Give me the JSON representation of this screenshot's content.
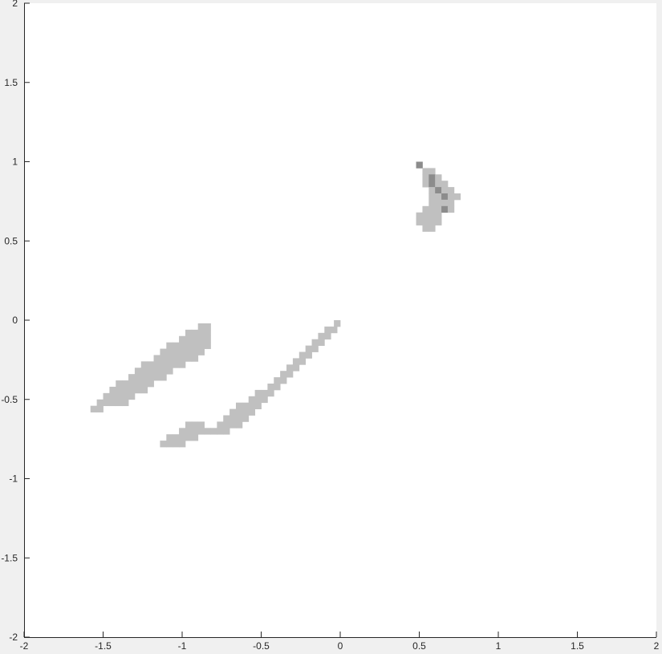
{
  "chart_data": {
    "type": "heatmap",
    "title": "",
    "xlabel": "",
    "ylabel": "",
    "xlim": [
      -2,
      2
    ],
    "ylim": [
      -2,
      2
    ],
    "grid": false,
    "legend": "none",
    "cell_size": 0.04,
    "xticks": [
      "-2",
      "-1.5",
      "-1",
      "-0.5",
      "0",
      "0.5",
      "1",
      "1.5",
      "2"
    ],
    "yticks": [
      "-2",
      "-1.5",
      "-1",
      "-0.5",
      "0",
      "0.5",
      "1",
      "1.5",
      "2"
    ],
    "colors": {
      "background": "#ffffff",
      "low": "#c0c0c0",
      "high": "#8c8c8c",
      "axis": "#262626"
    },
    "cells": [
      [
        -0.88,
        -0.04,
        1
      ],
      [
        -0.84,
        -0.04,
        1
      ],
      [
        -0.96,
        -0.08,
        1
      ],
      [
        -0.92,
        -0.08,
        1
      ],
      [
        -0.88,
        -0.08,
        1
      ],
      [
        -0.84,
        -0.08,
        1
      ],
      [
        -1.0,
        -0.12,
        1
      ],
      [
        -0.96,
        -0.12,
        1
      ],
      [
        -0.92,
        -0.12,
        1
      ],
      [
        -0.88,
        -0.12,
        1
      ],
      [
        -0.84,
        -0.12,
        1
      ],
      [
        -1.08,
        -0.16,
        1
      ],
      [
        -1.04,
        -0.16,
        1
      ],
      [
        -1.0,
        -0.16,
        1
      ],
      [
        -0.96,
        -0.16,
        1
      ],
      [
        -0.92,
        -0.16,
        1
      ],
      [
        -0.88,
        -0.16,
        1
      ],
      [
        -0.84,
        -0.16,
        1
      ],
      [
        -1.12,
        -0.2,
        1
      ],
      [
        -1.08,
        -0.2,
        1
      ],
      [
        -1.04,
        -0.2,
        1
      ],
      [
        -1.0,
        -0.2,
        1
      ],
      [
        -0.96,
        -0.2,
        1
      ],
      [
        -0.92,
        -0.2,
        1
      ],
      [
        -0.88,
        -0.2,
        1
      ],
      [
        -1.16,
        -0.24,
        1
      ],
      [
        -1.12,
        -0.24,
        1
      ],
      [
        -1.08,
        -0.24,
        1
      ],
      [
        -1.04,
        -0.24,
        1
      ],
      [
        -1.0,
        -0.24,
        1
      ],
      [
        -0.96,
        -0.24,
        1
      ],
      [
        -0.92,
        -0.24,
        1
      ],
      [
        -1.24,
        -0.28,
        1
      ],
      [
        -1.2,
        -0.28,
        1
      ],
      [
        -1.16,
        -0.28,
        1
      ],
      [
        -1.12,
        -0.28,
        1
      ],
      [
        -1.08,
        -0.28,
        1
      ],
      [
        -1.04,
        -0.28,
        1
      ],
      [
        -1.0,
        -0.28,
        1
      ],
      [
        -1.28,
        -0.32,
        1
      ],
      [
        -1.24,
        -0.32,
        1
      ],
      [
        -1.2,
        -0.32,
        1
      ],
      [
        -1.16,
        -0.32,
        1
      ],
      [
        -1.12,
        -0.32,
        1
      ],
      [
        -1.08,
        -0.32,
        1
      ],
      [
        -1.32,
        -0.36,
        1
      ],
      [
        -1.28,
        -0.36,
        1
      ],
      [
        -1.24,
        -0.36,
        1
      ],
      [
        -1.2,
        -0.36,
        1
      ],
      [
        -1.16,
        -0.36,
        1
      ],
      [
        -1.12,
        -0.36,
        1
      ],
      [
        -1.4,
        -0.4,
        1
      ],
      [
        -1.36,
        -0.4,
        1
      ],
      [
        -1.32,
        -0.4,
        1
      ],
      [
        -1.28,
        -0.4,
        1
      ],
      [
        -1.24,
        -0.4,
        1
      ],
      [
        -1.2,
        -0.4,
        1
      ],
      [
        -1.44,
        -0.44,
        1
      ],
      [
        -1.4,
        -0.44,
        1
      ],
      [
        -1.36,
        -0.44,
        1
      ],
      [
        -1.32,
        -0.44,
        1
      ],
      [
        -1.28,
        -0.44,
        1
      ],
      [
        -1.24,
        -0.44,
        1
      ],
      [
        -1.48,
        -0.48,
        1
      ],
      [
        -1.44,
        -0.48,
        1
      ],
      [
        -1.4,
        -0.48,
        1
      ],
      [
        -1.36,
        -0.48,
        1
      ],
      [
        -1.32,
        -0.48,
        1
      ],
      [
        -1.52,
        -0.52,
        1
      ],
      [
        -1.48,
        -0.52,
        1
      ],
      [
        -1.44,
        -0.52,
        1
      ],
      [
        -1.4,
        -0.52,
        1
      ],
      [
        -1.36,
        -0.52,
        1
      ],
      [
        -1.56,
        -0.56,
        1
      ],
      [
        -1.52,
        -0.56,
        1
      ],
      [
        -0.02,
        -0.02,
        1
      ],
      [
        -0.08,
        -0.06,
        1
      ],
      [
        -0.04,
        -0.06,
        1
      ],
      [
        -0.12,
        -0.1,
        1
      ],
      [
        -0.08,
        -0.1,
        1
      ],
      [
        -0.16,
        -0.14,
        1
      ],
      [
        -0.12,
        -0.14,
        1
      ],
      [
        -0.2,
        -0.18,
        1
      ],
      [
        -0.16,
        -0.18,
        1
      ],
      [
        -0.24,
        -0.22,
        1
      ],
      [
        -0.2,
        -0.22,
        1
      ],
      [
        -0.28,
        -0.26,
        1
      ],
      [
        -0.24,
        -0.26,
        1
      ],
      [
        -0.32,
        -0.3,
        1
      ],
      [
        -0.28,
        -0.3,
        1
      ],
      [
        -0.36,
        -0.34,
        1
      ],
      [
        -0.32,
        -0.34,
        1
      ],
      [
        -0.4,
        -0.38,
        1
      ],
      [
        -0.36,
        -0.38,
        1
      ],
      [
        -0.44,
        -0.42,
        1
      ],
      [
        -0.4,
        -0.42,
        1
      ],
      [
        -0.52,
        -0.46,
        1
      ],
      [
        -0.48,
        -0.46,
        1
      ],
      [
        -0.44,
        -0.46,
        1
      ],
      [
        -0.56,
        -0.5,
        1
      ],
      [
        -0.52,
        -0.5,
        1
      ],
      [
        -0.48,
        -0.5,
        1
      ],
      [
        -0.64,
        -0.54,
        1
      ],
      [
        -0.6,
        -0.54,
        1
      ],
      [
        -0.56,
        -0.54,
        1
      ],
      [
        -0.52,
        -0.54,
        1
      ],
      [
        -0.68,
        -0.58,
        1
      ],
      [
        -0.64,
        -0.58,
        1
      ],
      [
        -0.6,
        -0.58,
        1
      ],
      [
        -0.56,
        -0.58,
        1
      ],
      [
        -0.72,
        -0.62,
        1
      ],
      [
        -0.68,
        -0.62,
        1
      ],
      [
        -0.64,
        -0.62,
        1
      ],
      [
        -0.6,
        -0.62,
        1
      ],
      [
        -0.96,
        -0.66,
        1
      ],
      [
        -0.92,
        -0.66,
        1
      ],
      [
        -0.88,
        -0.66,
        1
      ],
      [
        -0.76,
        -0.66,
        1
      ],
      [
        -0.72,
        -0.66,
        1
      ],
      [
        -0.68,
        -0.66,
        1
      ],
      [
        -0.64,
        -0.66,
        1
      ],
      [
        -1.0,
        -0.7,
        1
      ],
      [
        -0.96,
        -0.7,
        1
      ],
      [
        -0.92,
        -0.7,
        1
      ],
      [
        -0.88,
        -0.7,
        1
      ],
      [
        -0.84,
        -0.7,
        1
      ],
      [
        -0.8,
        -0.7,
        1
      ],
      [
        -0.76,
        -0.7,
        1
      ],
      [
        -0.72,
        -0.7,
        1
      ],
      [
        -1.08,
        -0.74,
        1
      ],
      [
        -1.04,
        -0.74,
        1
      ],
      [
        -1.0,
        -0.74,
        1
      ],
      [
        -0.96,
        -0.74,
        1
      ],
      [
        -0.92,
        -0.74,
        1
      ],
      [
        -1.12,
        -0.78,
        1
      ],
      [
        -1.08,
        -0.78,
        1
      ],
      [
        -1.04,
        -0.78,
        1
      ],
      [
        -1.0,
        -0.78,
        1
      ],
      [
        0.5,
        0.98,
        2
      ],
      [
        0.54,
        0.94,
        1
      ],
      [
        0.58,
        0.94,
        1
      ],
      [
        0.54,
        0.9,
        1
      ],
      [
        0.58,
        0.9,
        2
      ],
      [
        0.62,
        0.9,
        1
      ],
      [
        0.54,
        0.86,
        1
      ],
      [
        0.58,
        0.86,
        2
      ],
      [
        0.62,
        0.86,
        1
      ],
      [
        0.66,
        0.86,
        1
      ],
      [
        0.58,
        0.82,
        1
      ],
      [
        0.62,
        0.82,
        2
      ],
      [
        0.66,
        0.82,
        1
      ],
      [
        0.7,
        0.82,
        1
      ],
      [
        0.58,
        0.78,
        1
      ],
      [
        0.62,
        0.78,
        1
      ],
      [
        0.66,
        0.78,
        2
      ],
      [
        0.7,
        0.78,
        1
      ],
      [
        0.74,
        0.78,
        1
      ],
      [
        0.58,
        0.74,
        1
      ],
      [
        0.62,
        0.74,
        1
      ],
      [
        0.66,
        0.74,
        1
      ],
      [
        0.7,
        0.74,
        1
      ],
      [
        0.54,
        0.7,
        1
      ],
      [
        0.58,
        0.7,
        1
      ],
      [
        0.62,
        0.7,
        1
      ],
      [
        0.66,
        0.7,
        2
      ],
      [
        0.7,
        0.7,
        1
      ],
      [
        0.5,
        0.66,
        1
      ],
      [
        0.54,
        0.66,
        1
      ],
      [
        0.58,
        0.66,
        1
      ],
      [
        0.62,
        0.66,
        1
      ],
      [
        0.5,
        0.62,
        1
      ],
      [
        0.54,
        0.62,
        1
      ],
      [
        0.58,
        0.62,
        1
      ],
      [
        0.62,
        0.62,
        1
      ],
      [
        0.54,
        0.58,
        1
      ],
      [
        0.58,
        0.58,
        1
      ]
    ]
  }
}
